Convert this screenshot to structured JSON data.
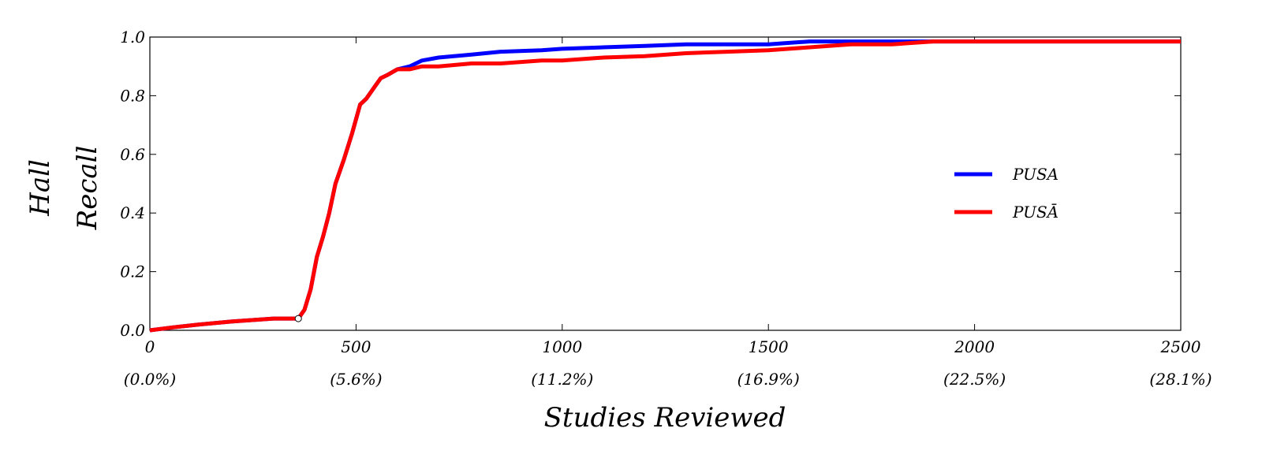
{
  "chart_data": {
    "type": "line",
    "title": "",
    "xlabel": "Studies Reviewed",
    "ylabel": [
      "Hall",
      "Recall"
    ],
    "xlim": [
      0,
      2500
    ],
    "ylim": [
      0.0,
      1.0
    ],
    "grid": false,
    "legend_position": "right",
    "x_ticks": [
      0,
      500,
      1000,
      1500,
      2000,
      2500
    ],
    "x_tick_labels": [
      "0",
      "500",
      "1000",
      "1500",
      "2000",
      "2500"
    ],
    "x_tick_percent_labels": [
      "(0.0%)",
      "(5.6%)",
      "(11.2%)",
      "(16.9%)",
      "(22.5%)",
      "(28.1%)"
    ],
    "y_ticks": [
      0.0,
      0.2,
      0.4,
      0.6,
      0.8,
      1.0
    ],
    "y_tick_labels": [
      "0.0",
      "0.2",
      "0.4",
      "0.6",
      "0.8",
      "1.0"
    ],
    "marker_point": {
      "x": 360,
      "y": 0.04
    },
    "series": [
      {
        "name": "PUSA",
        "color": "#0000ff",
        "x": [
          0,
          55,
          120,
          200,
          300,
          340,
          360,
          375,
          390,
          405,
          420,
          435,
          450,
          470,
          490,
          510,
          525,
          545,
          560,
          575,
          600,
          630,
          660,
          700,
          780,
          850,
          950,
          1000,
          1100,
          1200,
          1300,
          1400,
          1500,
          1550,
          1600,
          1700,
          1800,
          1850,
          1900,
          2000,
          2200,
          2400,
          2500
        ],
        "y": [
          0.0,
          0.01,
          0.02,
          0.03,
          0.04,
          0.04,
          0.04,
          0.07,
          0.14,
          0.25,
          0.32,
          0.4,
          0.5,
          0.58,
          0.67,
          0.77,
          0.79,
          0.83,
          0.86,
          0.87,
          0.89,
          0.9,
          0.92,
          0.93,
          0.94,
          0.95,
          0.955,
          0.96,
          0.965,
          0.97,
          0.975,
          0.975,
          0.975,
          0.98,
          0.985,
          0.985,
          0.985,
          0.985,
          0.985,
          0.985,
          0.985,
          0.985,
          0.985
        ]
      },
      {
        "name": "PUSĀ",
        "color": "#ff0000",
        "x": [
          0,
          55,
          120,
          200,
          300,
          340,
          360,
          375,
          390,
          405,
          420,
          435,
          450,
          470,
          490,
          510,
          525,
          545,
          560,
          575,
          600,
          630,
          660,
          700,
          780,
          850,
          950,
          1000,
          1100,
          1200,
          1300,
          1400,
          1500,
          1550,
          1600,
          1700,
          1800,
          1850,
          1900,
          2000,
          2200,
          2400,
          2500
        ],
        "y": [
          0.0,
          0.01,
          0.02,
          0.03,
          0.04,
          0.04,
          0.04,
          0.07,
          0.14,
          0.25,
          0.32,
          0.4,
          0.5,
          0.58,
          0.67,
          0.77,
          0.79,
          0.83,
          0.86,
          0.87,
          0.89,
          0.89,
          0.9,
          0.9,
          0.91,
          0.91,
          0.92,
          0.92,
          0.93,
          0.935,
          0.945,
          0.95,
          0.955,
          0.96,
          0.965,
          0.975,
          0.975,
          0.98,
          0.985,
          0.985,
          0.985,
          0.985,
          0.985
        ]
      }
    ]
  }
}
